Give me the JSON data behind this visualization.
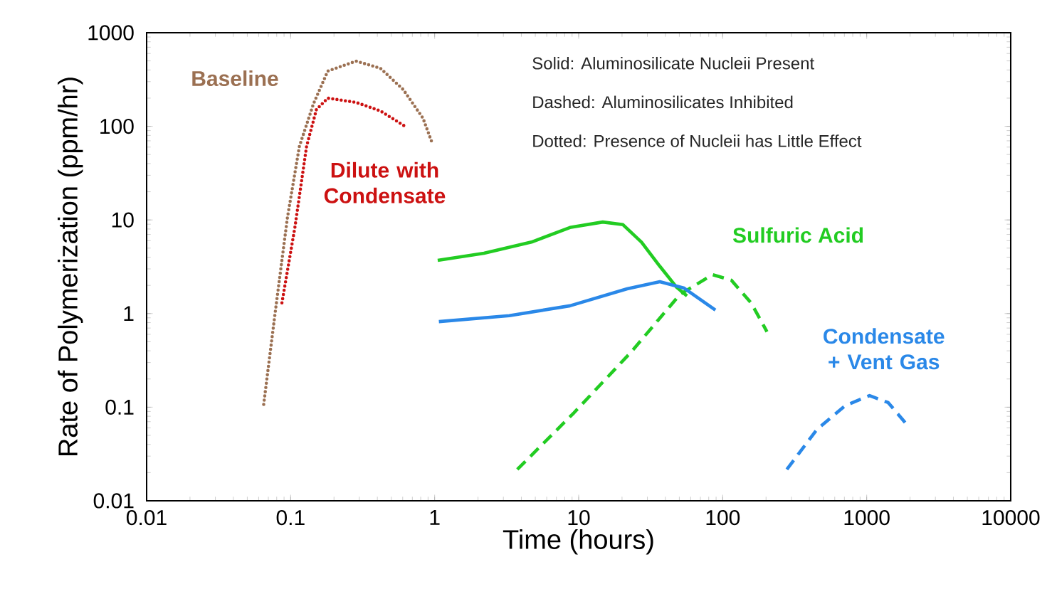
{
  "chart_data": {
    "type": "line",
    "xlabel": "Time (hours)",
    "ylabel": "Rate of Polymerization (ppm/hr)",
    "log": "xy",
    "xlim": [
      0.01,
      10000
    ],
    "ylim": [
      0.01,
      1000
    ],
    "xticks": [
      0.01,
      0.1,
      1,
      10,
      100,
      1000,
      10000
    ],
    "yticks": [
      0.01,
      0.1,
      1,
      10,
      100,
      1000
    ],
    "marker": "none",
    "annotations": [
      "Solid: Aluminosilicate Nucleii Present",
      "Dashed: Aluminosilicates Inhibited",
      "Dotted: Presence of Nucleii has Little Effect"
    ],
    "series": [
      {
        "name": "Baseline",
        "color": "#9b7052",
        "line_style": "dotted",
        "x": [
          0.065,
          0.078,
          0.095,
          0.115,
          0.144,
          0.181,
          0.285,
          0.42,
          0.605,
          0.83,
          0.955
        ],
        "values": [
          0.107,
          1.01,
          10.6,
          61,
          174,
          389,
          497,
          417,
          247,
          122,
          68
        ]
      },
      {
        "name": "Dilute with Condensate",
        "color": "#cc1111",
        "line_style": "dotted",
        "x": [
          0.087,
          0.107,
          0.129,
          0.151,
          0.181,
          0.285,
          0.42,
          0.63
        ],
        "values": [
          1.3,
          8.3,
          61,
          151,
          200,
          180,
          146,
          99
        ]
      },
      {
        "color": "#22cc22",
        "line_style": "solid",
        "x": [
          1.05,
          2.2,
          4.7,
          8.7,
          14.7,
          20.3,
          27.3,
          36.6,
          48,
          56.5
        ],
        "values": [
          3.7,
          4.4,
          5.8,
          8.3,
          9.5,
          8.9,
          5.8,
          3.2,
          1.9,
          1.54
        ]
      },
      {
        "name": "Sulfuric Acid",
        "color": "#22cc22",
        "line_style": "dashed",
        "x": [
          3.75,
          9.3,
          23.2,
          50.5,
          85,
          115,
          158,
          203
        ],
        "values": [
          0.0216,
          0.0875,
          0.39,
          1.6,
          2.6,
          2.27,
          1.29,
          0.64
        ]
      },
      {
        "color": "#2a88e8",
        "line_style": "solid",
        "x": [
          1.07,
          3.3,
          8.7,
          21.7,
          36.6,
          54,
          89
        ],
        "values": [
          0.82,
          0.95,
          1.21,
          1.84,
          2.19,
          1.87,
          1.09
        ]
      },
      {
        "name": "Condensate + Vent Gas",
        "color": "#2a88e8",
        "line_style": "dashed",
        "x": [
          279,
          450,
          710,
          1047,
          1410,
          1850
        ],
        "values": [
          0.0216,
          0.0575,
          0.104,
          0.133,
          0.112,
          0.0685
        ]
      }
    ]
  }
}
